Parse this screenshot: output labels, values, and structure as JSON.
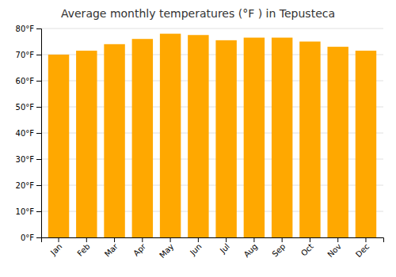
{
  "chart_data": {
    "type": "bar",
    "title": "Average monthly temperatures (°F ) in Tepusteca",
    "categories": [
      "Jan",
      "Feb",
      "Mar",
      "Apr",
      "May",
      "Jun",
      "Jul",
      "Aug",
      "Sep",
      "Oct",
      "Nov",
      "Dec"
    ],
    "values": [
      70,
      71.5,
      74,
      76,
      78,
      77.5,
      75.5,
      76.5,
      76.5,
      75,
      73,
      71.5
    ],
    "color": "#FFA800",
    "ylim": [
      0,
      80
    ],
    "yticks": [
      {
        "value": 0,
        "label": "0°F"
      },
      {
        "value": 10,
        "label": "10°F"
      },
      {
        "value": 20,
        "label": "20°F"
      },
      {
        "value": 30,
        "label": "30°F"
      },
      {
        "value": 40,
        "label": "40°F"
      },
      {
        "value": 50,
        "label": "50°F"
      },
      {
        "value": 60,
        "label": "60°F"
      },
      {
        "value": 70,
        "label": "70°F"
      },
      {
        "value": 80,
        "label": "80°F"
      }
    ],
    "grid": true
  }
}
